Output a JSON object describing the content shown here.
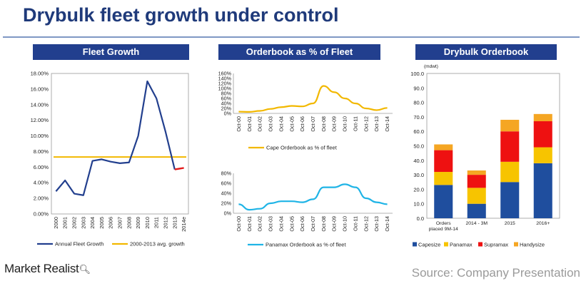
{
  "page": {
    "title": "Drybulk fleet growth under control",
    "brand": "Market Realist",
    "brand_icon": "magnifier-icon",
    "source": "Source: Company Presentation"
  },
  "colors": {
    "navy": "#223f8e",
    "gold": "#f2b800",
    "cyan": "#1fb4e6",
    "red": "#e31c1c",
    "capesize": "#1f4e9e",
    "panamax": "#f7c400",
    "supramax": "#ee1111",
    "handysize": "#f5a623"
  },
  "chart_data": [
    {
      "type": "line",
      "title": "Fleet Growth",
      "x": [
        "2000",
        "2001",
        "2002",
        "2003",
        "2004",
        "2005",
        "2006",
        "2007",
        "2008",
        "2009",
        "2010",
        "2011",
        "2012",
        "2013",
        "2014e"
      ],
      "series": [
        {
          "name": "Annual Fleet Growth",
          "values": [
            2.9,
            4.3,
            2.6,
            2.4,
            6.8,
            7.0,
            6.7,
            6.5,
            6.6,
            10.0,
            17.0,
            14.8,
            10.5,
            5.7,
            5.9
          ]
        },
        {
          "name": "2000-2013 avg. growth",
          "values": [
            7.3,
            7.3,
            7.3,
            7.3,
            7.3,
            7.3,
            7.3,
            7.3,
            7.3,
            7.3,
            7.3,
            7.3,
            7.3,
            7.3,
            7.3
          ]
        }
      ],
      "y_ticks": [
        "0.00%",
        "2.00%",
        "4.00%",
        "6.00%",
        "8.00%",
        "10.00%",
        "12.00%",
        "14.00%",
        "16.00%",
        "18.00%"
      ],
      "ylim": [
        0,
        18
      ],
      "legend": "bottom",
      "grid": false
    },
    {
      "type": "line",
      "title": "Orderbook as % of Fleet",
      "x": [
        "Oct-00",
        "Oct-01",
        "Oct-02",
        "Oct-03",
        "Oct-04",
        "Oct-05",
        "Oct-06",
        "Oct-07",
        "Oct-08",
        "Oct-09",
        "Oct-10",
        "Oct-11",
        "Oct-12",
        "Oct-13",
        "Oct-14"
      ],
      "series": [
        {
          "name": "Cape Orderbook as % of fleet",
          "values": [
            7,
            6,
            10,
            18,
            25,
            30,
            28,
            40,
            110,
            85,
            60,
            40,
            20,
            13,
            22
          ]
        }
      ],
      "y_ticks": [
        "0%",
        "20%",
        "40%",
        "60%",
        "80%",
        "100%",
        "120%",
        "140%",
        "160%"
      ],
      "ylim": [
        0,
        160
      ],
      "legend": "bottom",
      "grid": false
    },
    {
      "type": "line",
      "x": [
        "Oct-00",
        "Oct-01",
        "Oct-02",
        "Oct-03",
        "Oct-04",
        "Oct-05",
        "Oct-06",
        "Oct-07",
        "Oct-08",
        "Oct-09",
        "Oct-10",
        "Oct-11",
        "Oct-12",
        "Oct-13",
        "Oct-14"
      ],
      "series": [
        {
          "name": "Panamax Orderbook as % of fleet",
          "values": [
            18,
            7,
            9,
            20,
            24,
            24,
            22,
            28,
            52,
            52,
            58,
            52,
            30,
            22,
            18
          ]
        }
      ],
      "y_ticks": [
        "0%",
        "20%",
        "40%",
        "60%",
        "80%"
      ],
      "ylim": [
        0,
        80
      ],
      "legend": "bottom",
      "grid": false
    },
    {
      "type": "bar",
      "stacked": true,
      "title": "Drybulk Orderbook",
      "unit": "(mdwt)",
      "categories": [
        "Orders placed 9M-14",
        "2014 - 3M",
        "2015",
        "2016+"
      ],
      "category_lines": [
        [
          "Orders",
          "placed 9M-14"
        ],
        [
          "2014 - 3M"
        ],
        [
          "2015"
        ],
        [
          "2016+"
        ]
      ],
      "series": [
        {
          "name": "Capesize",
          "values": [
            23,
            10,
            25,
            38
          ]
        },
        {
          "name": "Panamax",
          "values": [
            9,
            11,
            14,
            11
          ]
        },
        {
          "name": "Supramax",
          "values": [
            15,
            9,
            21,
            18
          ]
        },
        {
          "name": "Handysize",
          "values": [
            4,
            3,
            8,
            5
          ]
        }
      ],
      "y_ticks": [
        "0.0",
        "10.0",
        "20.0",
        "30.0",
        "40.0",
        "50.0",
        "60.0",
        "70.0",
        "80.0",
        "90.0",
        "100.0"
      ],
      "ylim": [
        0,
        100
      ],
      "legend": "bottom",
      "grid": false
    }
  ]
}
